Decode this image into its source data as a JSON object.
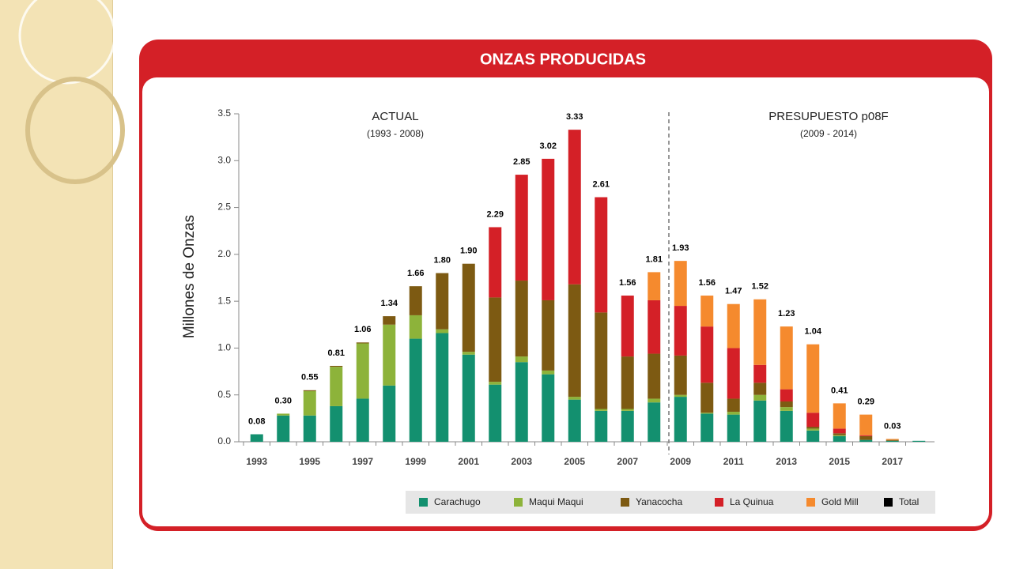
{
  "chart_data": {
    "type": "stacked-bar",
    "title": "ONZAS PRODUCIDAS",
    "y_label": "Millones de Onzas",
    "annotations": [
      "ACTUAL",
      "(1993 - 2008)",
      "PRESUPUESTO p08F",
      "(2009 - 2014)"
    ],
    "categories": [
      "1993",
      null,
      "1995",
      null,
      "1997",
      null,
      "1999",
      null,
      "2001",
      null,
      "2003",
      null,
      "2005",
      null,
      "2007",
      null,
      "2009",
      null,
      "2011",
      null,
      "2013",
      null,
      "2015",
      null,
      "2017",
      null
    ],
    "ylim": [
      0,
      3.5
    ],
    "yticks": [
      {
        "value": 0,
        "label": "0.0"
      },
      0.5,
      {
        "value": 1,
        "label": "1.0"
      },
      1.5,
      {
        "value": 2,
        "label": "2.0"
      },
      2.5,
      {
        "value": 3,
        "label": "3.0"
      },
      3.5
    ],
    "series": [
      {
        "name": "Carachugo",
        "color": "#13906f",
        "values": [
          0.08,
          0.28,
          0.28,
          0.38,
          0.46,
          0.6,
          1.1,
          1.16,
          0.93,
          0.61,
          0.85,
          0.72,
          0.45,
          0.33,
          0.33,
          0.42,
          0.48,
          0.3,
          0.29,
          0.44,
          0.33,
          0.12,
          0.06,
          0.02,
          0.01,
          0.01
        ]
      },
      {
        "name": "Maqui Maqui",
        "color": "#8db33a",
        "values": [
          0,
          0.02,
          0.26,
          0.42,
          0.59,
          0.65,
          0.25,
          0.04,
          0.03,
          0.03,
          0.06,
          0.04,
          0.03,
          0.02,
          0.02,
          0.04,
          0.02,
          0.01,
          0.03,
          0.06,
          0.04,
          0.02,
          0.01,
          0,
          0,
          0
        ]
      },
      {
        "name": "Yanacocha",
        "color": "#7d5a12",
        "values": [
          0,
          0,
          0.01,
          0.01,
          0.01,
          0.09,
          0.31,
          0.6,
          0.94,
          0.9,
          0.81,
          0.75,
          1.2,
          1.03,
          0.56,
          0.48,
          0.42,
          0.32,
          0.14,
          0.13,
          0.06,
          0.02,
          0.02,
          0.04,
          0.01,
          0
        ]
      },
      {
        "name": "La Quinua",
        "color": "#d42027",
        "values": [
          0,
          0,
          0,
          0,
          0,
          0,
          0,
          0,
          0,
          0.75,
          1.13,
          1.51,
          1.65,
          1.23,
          0.65,
          0.57,
          0.53,
          0.6,
          0.54,
          0.19,
          0.13,
          0.15,
          0.05,
          0.01,
          0,
          0
        ]
      },
      {
        "name": "Gold Mill",
        "color": "#f58a2e",
        "values": [
          0,
          0,
          0,
          0,
          0,
          0,
          0,
          0,
          0,
          0,
          0,
          0,
          0,
          0,
          0,
          0.3,
          0.48,
          0.33,
          0.47,
          0.7,
          0.67,
          0.73,
          0.27,
          0.22,
          0.01,
          0
        ]
      },
      {
        "name": "Total",
        "color": "#000000",
        "role": "total",
        "values": [
          0.08,
          0.3,
          0.55,
          0.81,
          1.06,
          1.34,
          1.66,
          1.8,
          1.9,
          2.29,
          2.85,
          3.02,
          3.33,
          2.61,
          1.56,
          1.81,
          1.93,
          1.56,
          1.47,
          1.52,
          1.23,
          1.04,
          0.41,
          0.29,
          0.03,
          null
        ],
        "value_labels": [
          "0.08",
          "0.30",
          "0.55",
          "0.81",
          "1.06",
          "1.34",
          "1.66",
          "1.80",
          "1.90",
          "2.29",
          "2.85",
          "3.02",
          "3.33",
          "2.61",
          "1.56",
          "1.81",
          "1.93",
          "1.56",
          "1.47",
          "1.52",
          "1.23",
          "1.04",
          "0.41",
          "0.29",
          "0.03",
          null
        ]
      }
    ]
  }
}
